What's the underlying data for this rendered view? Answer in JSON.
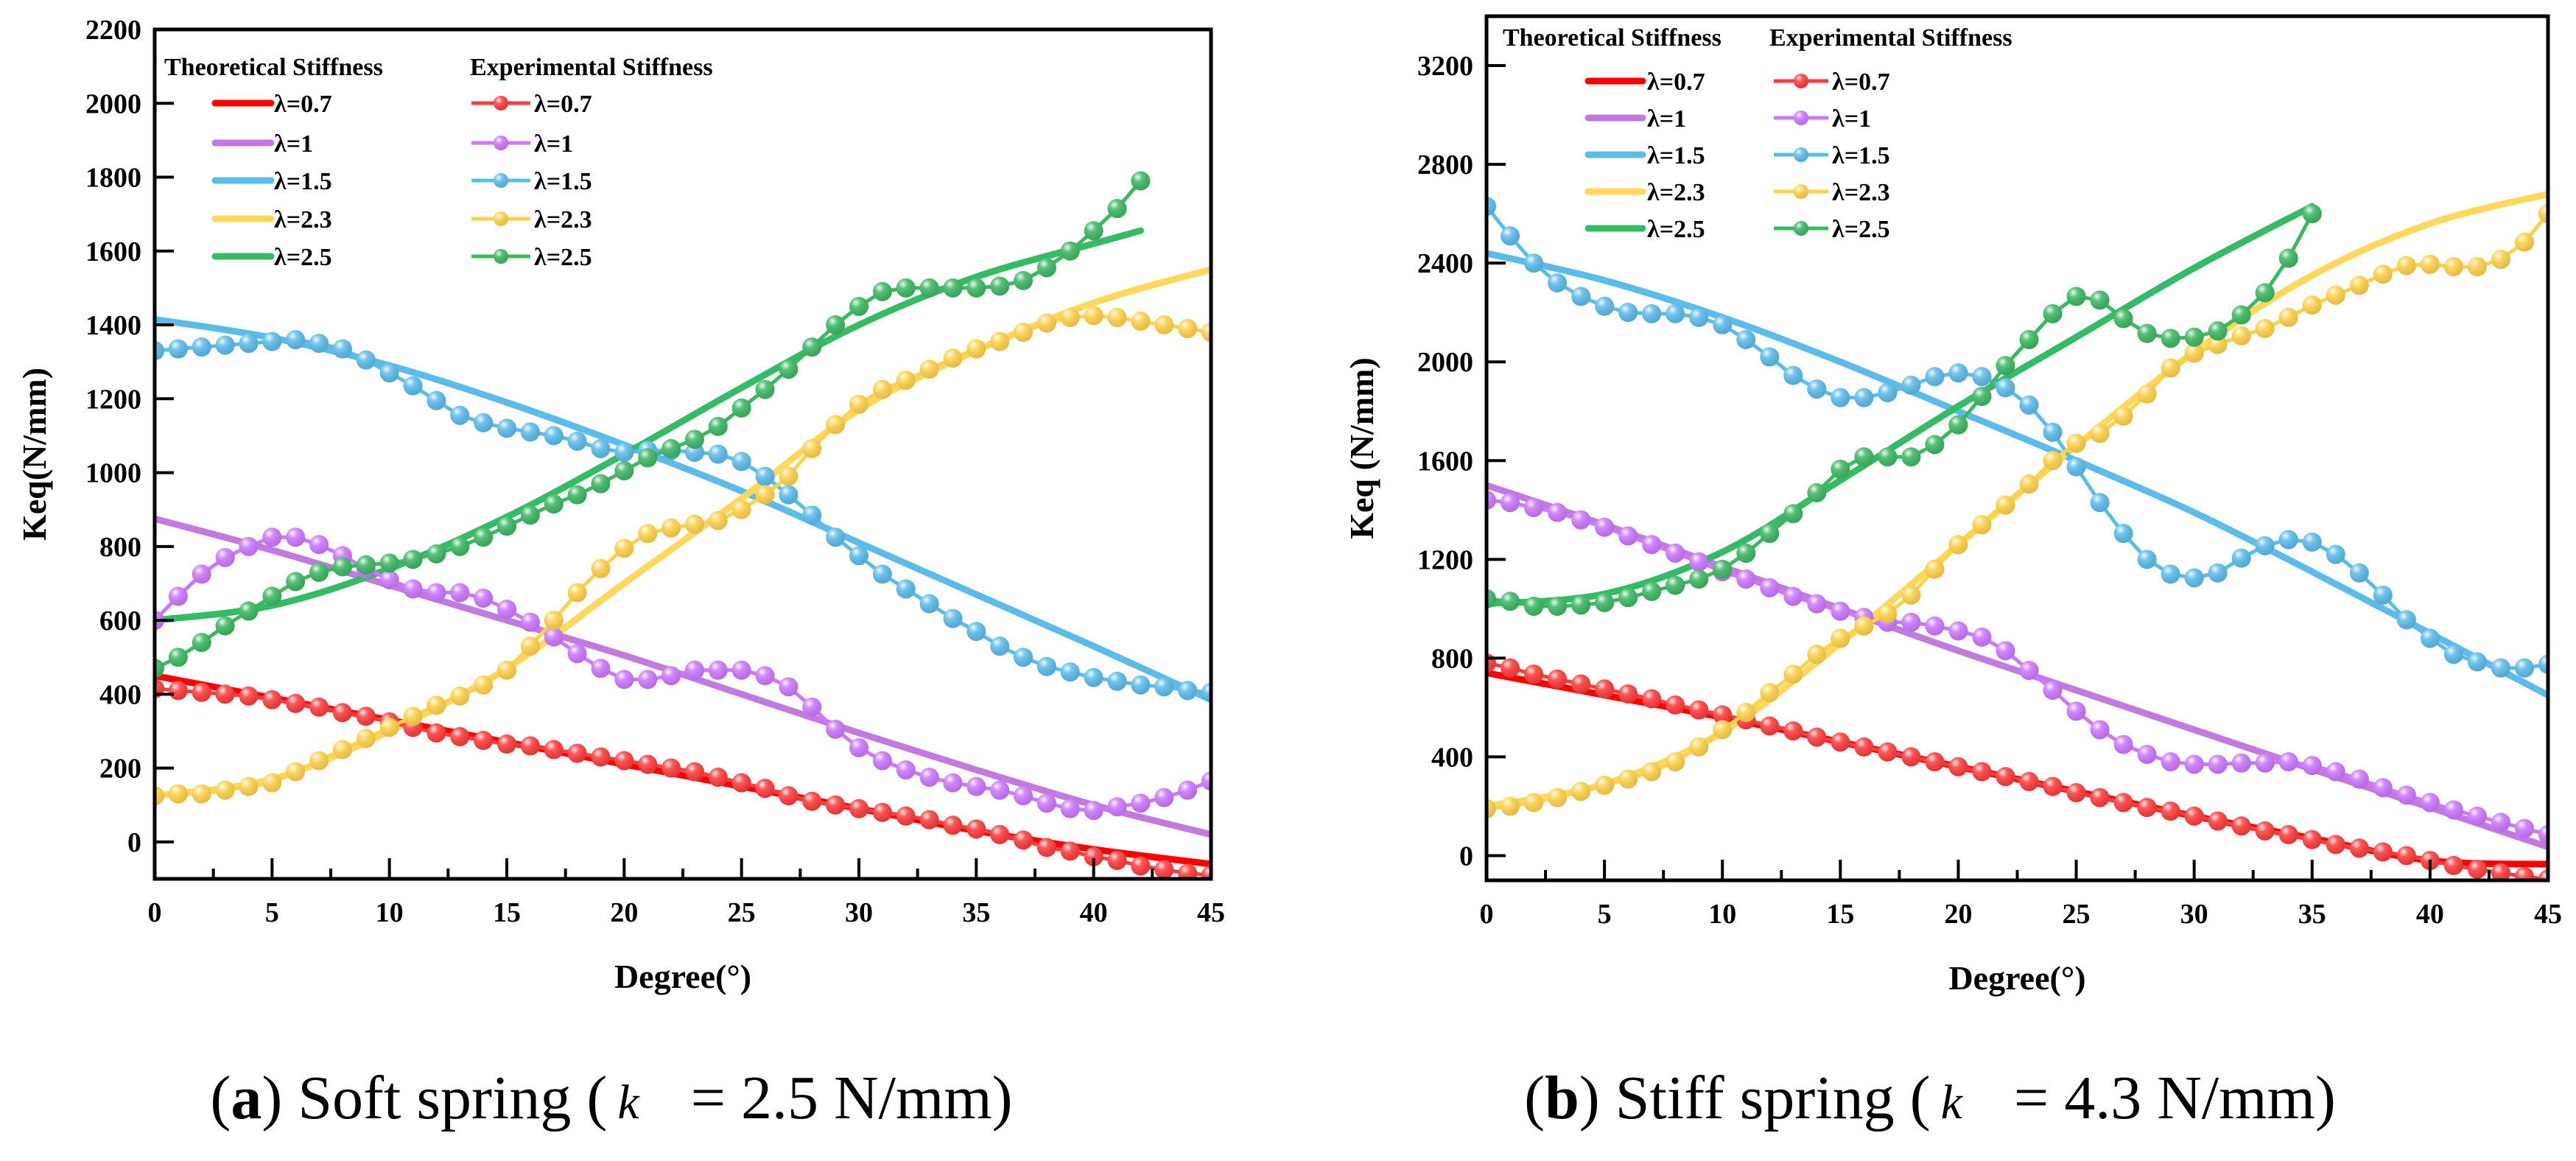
{
  "chart_data": [
    {
      "type": "line",
      "panel_label": "a",
      "caption_text": "Soft spring (",
      "caption_k": "k",
      "caption_value": "= 2.5 N/mm)",
      "xlabel": "Degree(°)",
      "ylabel": "Keq(N/mm)",
      "xlim": [
        0,
        45
      ],
      "ylim": [
        -100,
        2200
      ],
      "xticks": [
        0,
        5,
        10,
        15,
        20,
        25,
        30,
        35,
        40,
        45
      ],
      "yticks": [
        0,
        200,
        400,
        600,
        800,
        1000,
        1200,
        1400,
        1600,
        1800,
        2000,
        2200
      ],
      "legend_headers": [
        "Theoretical Stiffness",
        "Experimental Stiffness"
      ],
      "legend_position": "top-left",
      "series": [
        {
          "name": "λ=0.7",
          "color": "#ff0000",
          "exp_color": "#ff3b3b",
          "theory_x": [
            0,
            5,
            10,
            15,
            20,
            25,
            30,
            35,
            40,
            45
          ],
          "theory": [
            450,
            390,
            330,
            270,
            210,
            150,
            90,
            30,
            -20,
            -60
          ],
          "exp": [
            415,
            410,
            405,
            400,
            395,
            385,
            375,
            365,
            350,
            340,
            325,
            310,
            295,
            285,
            275,
            265,
            260,
            250,
            240,
            230,
            220,
            210,
            200,
            190,
            175,
            160,
            145,
            125,
            110,
            100,
            90,
            80,
            70,
            60,
            45,
            35,
            20,
            5,
            -15,
            -25,
            -40,
            -50,
            -65,
            -75,
            -85,
            -90
          ]
        },
        {
          "name": "λ=1",
          "color": "#c27ae0",
          "exp_color": "#cc77ff",
          "theory_x": [
            0,
            5,
            10,
            15,
            20,
            25,
            30,
            35,
            40,
            45
          ],
          "theory": [
            875,
            790,
            695,
            600,
            505,
            400,
            295,
            195,
            100,
            20
          ],
          "exp": [
            600,
            665,
            725,
            770,
            800,
            825,
            825,
            805,
            775,
            740,
            710,
            685,
            675,
            675,
            660,
            630,
            595,
            555,
            510,
            470,
            440,
            440,
            450,
            465,
            465,
            465,
            450,
            420,
            365,
            305,
            255,
            220,
            195,
            175,
            160,
            150,
            140,
            125,
            105,
            90,
            85,
            95,
            105,
            120,
            140,
            165
          ]
        },
        {
          "name": "λ=1.5",
          "color": "#5bbcec",
          "exp_color": "#5bbcec",
          "theory_x": [
            0,
            5,
            10,
            15,
            20,
            25,
            30,
            35,
            40,
            45
          ],
          "theory": [
            1415,
            1365,
            1290,
            1190,
            1075,
            950,
            810,
            670,
            530,
            385
          ],
          "exp": [
            1330,
            1335,
            1340,
            1345,
            1350,
            1355,
            1360,
            1350,
            1335,
            1305,
            1270,
            1235,
            1195,
            1155,
            1135,
            1120,
            1110,
            1100,
            1085,
            1065,
            1055,
            1060,
            1060,
            1055,
            1050,
            1030,
            990,
            940,
            885,
            825,
            775,
            725,
            685,
            645,
            605,
            570,
            530,
            500,
            475,
            460,
            445,
            435,
            425,
            420,
            410,
            405
          ]
        },
        {
          "name": "λ=2.3",
          "color": "#ffd75a",
          "exp_color": "#ffd24a",
          "theory_x": [
            0,
            5,
            10,
            15,
            20,
            25,
            30,
            35,
            40,
            45
          ],
          "theory": [
            125,
            170,
            300,
            470,
            700,
            930,
            1170,
            1330,
            1460,
            1550
          ],
          "exp": [
            125,
            130,
            130,
            140,
            150,
            160,
            190,
            220,
            250,
            280,
            310,
            340,
            370,
            395,
            425,
            465,
            530,
            600,
            675,
            740,
            795,
            835,
            850,
            860,
            870,
            900,
            940,
            990,
            1065,
            1130,
            1185,
            1225,
            1250,
            1280,
            1310,
            1335,
            1355,
            1380,
            1405,
            1420,
            1425,
            1420,
            1410,
            1400,
            1390,
            1380
          ]
        },
        {
          "name": "λ=2.5",
          "color": "#33bb66",
          "exp_color": "#3cb863",
          "theory_x": [
            0,
            5,
            10,
            15,
            20,
            25,
            30,
            35,
            40,
            42
          ],
          "theory": [
            600,
            640,
            740,
            880,
            1050,
            1230,
            1400,
            1530,
            1620,
            1655
          ],
          "exp": [
            470,
            500,
            540,
            585,
            625,
            665,
            705,
            730,
            745,
            750,
            755,
            765,
            780,
            800,
            825,
            855,
            885,
            915,
            940,
            970,
            1005,
            1040,
            1065,
            1090,
            1125,
            1175,
            1225,
            1280,
            1340,
            1400,
            1450,
            1490,
            1500,
            1500,
            1500,
            1500,
            1505,
            1520,
            1555,
            1600,
            1655,
            1715,
            1790
          ]
        }
      ]
    },
    {
      "type": "line",
      "panel_label": "b",
      "caption_text": "Stiff spring (",
      "caption_k": "k",
      "caption_value": "= 4.3 N/mm)",
      "xlabel": "Degree(°)",
      "ylabel": "Keq (N/mm)",
      "xlim": [
        0,
        45
      ],
      "ylim": [
        -100,
        3400
      ],
      "xticks": [
        0,
        5,
        10,
        15,
        20,
        25,
        30,
        35,
        40,
        45
      ],
      "yticks": [
        0,
        400,
        800,
        1200,
        1600,
        2000,
        2400,
        2800,
        3200
      ],
      "legend_headers": [
        "Theoretical Stiffness",
        "Experimental Stiffness"
      ],
      "legend_position": "top-left",
      "series": [
        {
          "name": "λ=0.7",
          "color": "#ff0000",
          "exp_color": "#ff3b3b",
          "theory_x": [
            0,
            5,
            10,
            15,
            20,
            25,
            30,
            35,
            40,
            45
          ],
          "theory": [
            740,
            650,
            560,
            460,
            360,
            260,
            160,
            70,
            -20,
            -35
          ],
          "exp": [
            780,
            760,
            735,
            715,
            695,
            675,
            655,
            635,
            610,
            590,
            570,
            550,
            525,
            505,
            480,
            460,
            440,
            420,
            400,
            380,
            360,
            340,
            320,
            300,
            280,
            255,
            235,
            215,
            195,
            180,
            160,
            140,
            120,
            100,
            85,
            65,
            45,
            30,
            15,
            0,
            -20,
            -40,
            -55,
            -70,
            -85,
            -95
          ]
        },
        {
          "name": "λ=1",
          "color": "#c27ae0",
          "exp_color": "#cc77ff",
          "theory_x": [
            0,
            5,
            10,
            15,
            20,
            25,
            30,
            35,
            40,
            45
          ],
          "theory": [
            1500,
            1340,
            1170,
            1000,
            830,
            670,
            510,
            350,
            195,
            35
          ],
          "exp": [
            1440,
            1430,
            1410,
            1390,
            1360,
            1330,
            1295,
            1260,
            1225,
            1190,
            1150,
            1120,
            1085,
            1050,
            1020,
            990,
            965,
            945,
            945,
            930,
            910,
            885,
            830,
            750,
            670,
            585,
            510,
            450,
            410,
            380,
            370,
            370,
            375,
            375,
            380,
            365,
            340,
            310,
            275,
            245,
            215,
            185,
            160,
            135,
            110,
            85
          ]
        },
        {
          "name": "λ=1.5",
          "color": "#5bbcec",
          "exp_color": "#5bbcec",
          "theory_x": [
            0,
            5,
            10,
            15,
            20,
            25,
            30,
            35,
            40,
            45
          ],
          "theory": [
            2440,
            2330,
            2180,
            2000,
            1800,
            1600,
            1390,
            1150,
            900,
            650
          ],
          "exp": [
            2630,
            2510,
            2400,
            2320,
            2265,
            2225,
            2200,
            2195,
            2195,
            2180,
            2150,
            2090,
            2020,
            1945,
            1890,
            1855,
            1855,
            1875,
            1905,
            1940,
            1955,
            1940,
            1895,
            1825,
            1715,
            1575,
            1430,
            1305,
            1200,
            1140,
            1125,
            1145,
            1205,
            1255,
            1280,
            1270,
            1220,
            1145,
            1055,
            955,
            880,
            815,
            785,
            760,
            760,
            775
          ]
        },
        {
          "name": "λ=2.3",
          "color": "#ffd75a",
          "exp_color": "#ffd24a",
          "theory_x": [
            0,
            5,
            10,
            15,
            20,
            25,
            30,
            35,
            40,
            45
          ],
          "theory": [
            200,
            290,
            500,
            860,
            1260,
            1660,
            2040,
            2350,
            2560,
            2680
          ],
          "exp": [
            190,
            200,
            215,
            235,
            260,
            285,
            310,
            340,
            380,
            440,
            510,
            580,
            660,
            735,
            815,
            880,
            930,
            980,
            1055,
            1160,
            1260,
            1340,
            1420,
            1505,
            1600,
            1670,
            1710,
            1780,
            1870,
            1975,
            2035,
            2070,
            2105,
            2135,
            2180,
            2230,
            2270,
            2310,
            2355,
            2390,
            2395,
            2385,
            2385,
            2415,
            2485,
            2600
          ]
        },
        {
          "name": "λ=2.5",
          "color": "#33bb66",
          "exp_color": "#3cb863",
          "theory_x": [
            0,
            5,
            10,
            15,
            20,
            25,
            30,
            35
          ],
          "theory": [
            1020,
            1060,
            1230,
            1520,
            1820,
            2100,
            2380,
            2630
          ],
          "exp": [
            1040,
            1030,
            1010,
            1010,
            1015,
            1025,
            1045,
            1070,
            1095,
            1120,
            1160,
            1225,
            1305,
            1385,
            1470,
            1565,
            1615,
            1615,
            1615,
            1665,
            1745,
            1860,
            1985,
            2090,
            2195,
            2265,
            2250,
            2175,
            2115,
            2095,
            2100,
            2125,
            2190,
            2280,
            2420,
            2600
          ]
        }
      ]
    }
  ]
}
